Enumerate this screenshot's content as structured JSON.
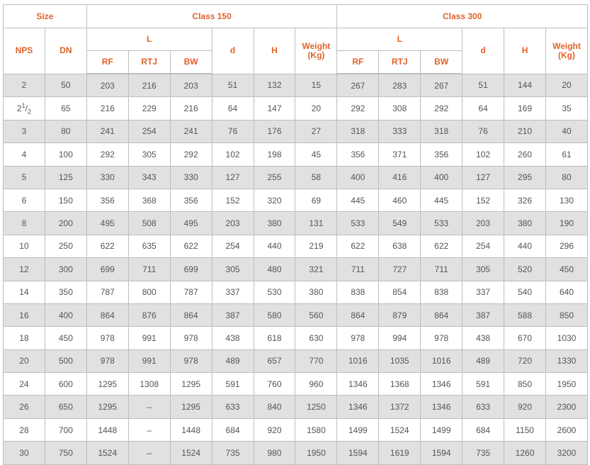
{
  "header": {
    "size": "Size",
    "class150": "Class 150",
    "class300": "Class 300",
    "nps": "NPS",
    "dn": "DN",
    "l": "L",
    "d": "d",
    "h": "H",
    "weight": "Weight (Kg)",
    "rf": "RF",
    "rtj": "RTJ",
    "bw": "BW"
  },
  "rows": [
    [
      "2",
      "50",
      "203",
      "216",
      "203",
      "51",
      "132",
      "15",
      "267",
      "283",
      "267",
      "51",
      "144",
      "20"
    ],
    [
      "2 1/2",
      "65",
      "216",
      "229",
      "216",
      "64",
      "147",
      "20",
      "292",
      "308",
      "292",
      "64",
      "169",
      "35"
    ],
    [
      "3",
      "80",
      "241",
      "254",
      "241",
      "76",
      "176",
      "27",
      "318",
      "333",
      "318",
      "76",
      "210",
      "40"
    ],
    [
      "4",
      "100",
      "292",
      "305",
      "292",
      "102",
      "198",
      "45",
      "356",
      "371",
      "356",
      "102",
      "260",
      "61"
    ],
    [
      "5",
      "125",
      "330",
      "343",
      "330",
      "127",
      "255",
      "58",
      "400",
      "416",
      "400",
      "127",
      "295",
      "80"
    ],
    [
      "6",
      "150",
      "356",
      "368",
      "356",
      "152",
      "320",
      "69",
      "445",
      "460",
      "445",
      "152",
      "326",
      "130"
    ],
    [
      "8",
      "200",
      "495",
      "508",
      "495",
      "203",
      "380",
      "131",
      "533",
      "549",
      "533",
      "203",
      "380",
      "190"
    ],
    [
      "10",
      "250",
      "622",
      "635",
      "622",
      "254",
      "440",
      "219",
      "622",
      "638",
      "622",
      "254",
      "440",
      "296"
    ],
    [
      "12",
      "300",
      "699",
      "711",
      "699",
      "305",
      "480",
      "321",
      "711",
      "727",
      "711",
      "305",
      "520",
      "450"
    ],
    [
      "14",
      "350",
      "787",
      "800",
      "787",
      "337",
      "530",
      "380",
      "838",
      "854",
      "838",
      "337",
      "540",
      "640"
    ],
    [
      "16",
      "400",
      "864",
      "876",
      "864",
      "387",
      "580",
      "560",
      "864",
      "879",
      "864",
      "387",
      "588",
      "850"
    ],
    [
      "18",
      "450",
      "978",
      "991",
      "978",
      "438",
      "618",
      "630",
      "978",
      "994",
      "978",
      "438",
      "670",
      "1030"
    ],
    [
      "20",
      "500",
      "978",
      "991",
      "978",
      "489",
      "657",
      "770",
      "1016",
      "1035",
      "1016",
      "489",
      "720",
      "1330"
    ],
    [
      "24",
      "600",
      "1295",
      "1308",
      "1295",
      "591",
      "760",
      "960",
      "1346",
      "1368",
      "1346",
      "591",
      "850",
      "1950"
    ],
    [
      "26",
      "650",
      "1295",
      "–",
      "1295",
      "633",
      "840",
      "1250",
      "1346",
      "1372",
      "1346",
      "633",
      "920",
      "2300"
    ],
    [
      "28",
      "700",
      "1448",
      "–",
      "1448",
      "684",
      "920",
      "1580",
      "1499",
      "1524",
      "1499",
      "684",
      "1150",
      "2600"
    ],
    [
      "30",
      "750",
      "1524",
      "–",
      "1524",
      "735",
      "980",
      "1950",
      "1594",
      "1619",
      "1594",
      "735",
      "1260",
      "3200"
    ]
  ],
  "colors": {
    "header_text": "#e0622a",
    "stripe": "#e1e1e1",
    "cell_text": "#555555",
    "border": "#bdbdbd"
  }
}
